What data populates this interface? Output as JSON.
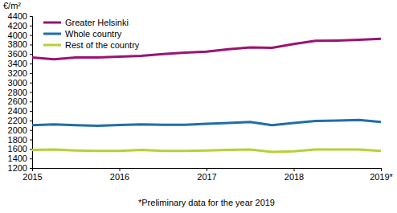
{
  "chart_data": {
    "type": "line",
    "y_label": "€/m²",
    "footnote": "*Preliminary data for the year 2019",
    "x": [
      2015,
      2015.25,
      2015.5,
      2015.75,
      2016,
      2016.25,
      2016.5,
      2016.75,
      2017,
      2017.25,
      2017.5,
      2017.75,
      2018,
      2018.25,
      2018.5,
      2018.75,
      2019
    ],
    "series": [
      {
        "name": "Greater Helsinki",
        "color": "#9b1470",
        "values": [
          3530,
          3490,
          3530,
          3530,
          3545,
          3560,
          3600,
          3630,
          3650,
          3700,
          3740,
          3730,
          3810,
          3880,
          3885,
          3900,
          3920
        ]
      },
      {
        "name": "Whole country",
        "color": "#1f6ea8",
        "values": [
          2100,
          2120,
          2100,
          2090,
          2105,
          2120,
          2110,
          2110,
          2130,
          2150,
          2170,
          2100,
          2150,
          2190,
          2200,
          2210,
          2170
        ]
      },
      {
        "name": "Rest of the country",
        "color": "#b3d236",
        "values": [
          1580,
          1590,
          1570,
          1560,
          1560,
          1580,
          1560,
          1560,
          1570,
          1580,
          1590,
          1540,
          1550,
          1590,
          1590,
          1590,
          1560
        ]
      }
    ],
    "xlim": [
      2015,
      2019
    ],
    "xticks": [
      2015,
      2016,
      2017,
      2018,
      {
        "value": 2019,
        "label": "2019*"
      }
    ],
    "ylim": [
      1200,
      4400
    ],
    "yticks": [
      1200,
      1400,
      1600,
      1800,
      2000,
      2200,
      2400,
      2600,
      2800,
      3000,
      3200,
      3400,
      3600,
      3800,
      4000,
      4200,
      4400
    ],
    "grid": false,
    "legend": "upper left"
  }
}
